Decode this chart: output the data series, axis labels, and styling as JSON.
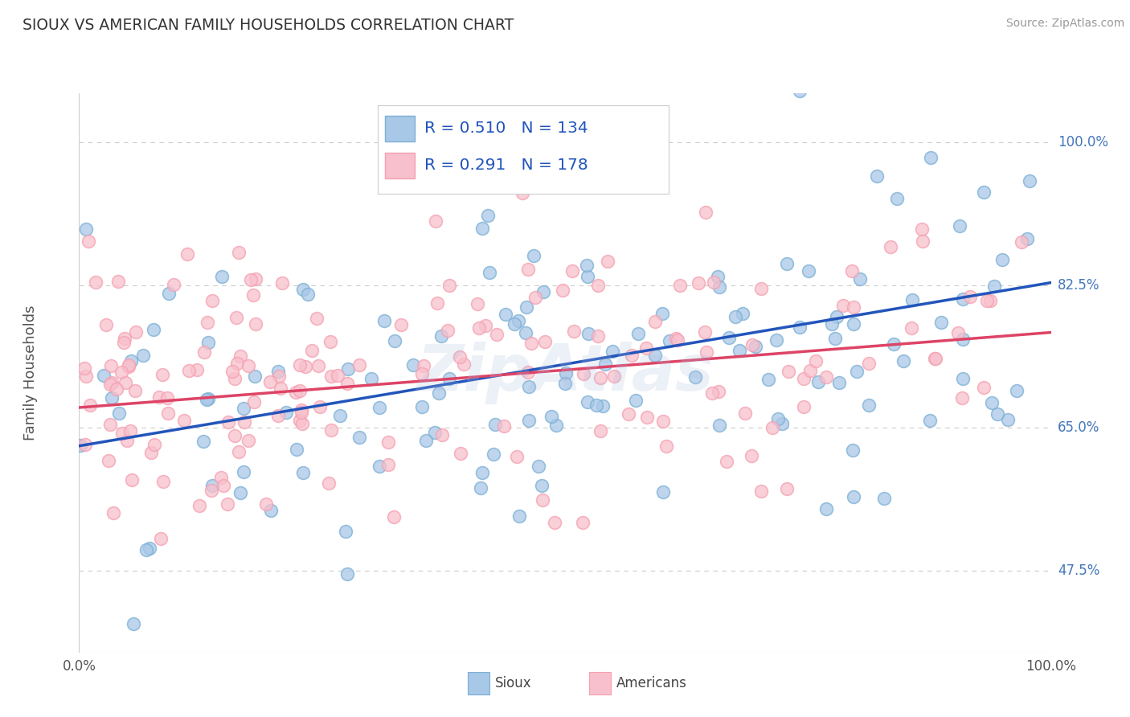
{
  "title": "SIOUX VS AMERICAN FAMILY HOUSEHOLDS CORRELATION CHART",
  "source": "Source: ZipAtlas.com",
  "ylabel": "Family Households",
  "y_tick_labels": [
    "47.5%",
    "65.0%",
    "82.5%",
    "100.0%"
  ],
  "y_tick_values": [
    0.475,
    0.65,
    0.825,
    1.0
  ],
  "x_min": 0.0,
  "x_max": 1.0,
  "y_min": 0.375,
  "y_max": 1.06,
  "blue_color": "#7BAFD4",
  "pink_color": "#F4A0B0",
  "blue_face_color": "#A8C8E8",
  "pink_face_color": "#F8C0CC",
  "blue_line_color": "#2255BB",
  "pink_line_color": "#DD4466",
  "legend_r_blue": "R = 0.510",
  "legend_n_blue": "N = 134",
  "legend_r_pink": "R = 0.291",
  "legend_n_pink": "N = 178",
  "blue_n": 134,
  "pink_n": 178,
  "blue_r": 0.51,
  "pink_r": 0.291,
  "blue_intercept": 0.628,
  "blue_slope": 0.2,
  "pink_intercept": 0.675,
  "pink_slope": 0.092,
  "watermark": "ZipAtlas",
  "background_color": "#FFFFFF",
  "grid_color": "#CCCCCC",
  "right_label_color": "#4477BB",
  "title_color": "#333333",
  "legend_text_color": "#2255BB",
  "bottom_label_sioux": "Sioux",
  "bottom_label_americans": "Americans",
  "seed_blue": 7,
  "seed_pink": 99
}
